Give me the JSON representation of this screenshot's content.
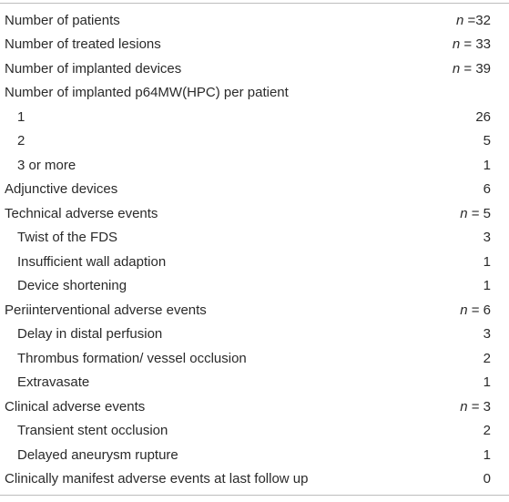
{
  "rows": [
    {
      "label": "Number of patients",
      "n_prefix": "n",
      "value": " =32",
      "indent": false
    },
    {
      "label": "Number of treated lesions",
      "n_prefix": "n",
      "value": " = 33",
      "indent": false
    },
    {
      "label": "Number of implanted devices",
      "n_prefix": "n",
      "value": " = 39",
      "indent": false
    },
    {
      "label": "Number of implanted p64MW(HPC) per patient",
      "n_prefix": "",
      "value": "",
      "indent": false
    },
    {
      "label": "1",
      "n_prefix": "",
      "value": "26",
      "indent": true
    },
    {
      "label": "2",
      "n_prefix": "",
      "value": "5",
      "indent": true
    },
    {
      "label": "3 or more",
      "n_prefix": "",
      "value": "1",
      "indent": true
    },
    {
      "label": "Adjunctive devices",
      "n_prefix": "",
      "value": "6",
      "indent": false
    },
    {
      "label": "Technical adverse events",
      "n_prefix": "n",
      "value": " = 5",
      "indent": false
    },
    {
      "label": "Twist of the FDS",
      "n_prefix": "",
      "value": "3",
      "indent": true
    },
    {
      "label": "Insufficient wall adaption",
      "n_prefix": "",
      "value": "1",
      "indent": true
    },
    {
      "label": "Device shortening",
      "n_prefix": "",
      "value": "1",
      "indent": true
    },
    {
      "label": "Periinterventional adverse events",
      "n_prefix": "n",
      "value": " = 6",
      "indent": false
    },
    {
      "label": "Delay in distal perfusion",
      "n_prefix": "",
      "value": "3",
      "indent": true
    },
    {
      "label": "Thrombus formation/ vessel occlusion",
      "n_prefix": "",
      "value": "2",
      "indent": true
    },
    {
      "label": "Extravasate",
      "n_prefix": "",
      "value": "1",
      "indent": true
    },
    {
      "label": "Clinical adverse events",
      "n_prefix": "n",
      "value": " = 3",
      "indent": false
    },
    {
      "label": "Transient stent occlusion",
      "n_prefix": "",
      "value": "2",
      "indent": true
    },
    {
      "label": "Delayed aneurysm rupture",
      "n_prefix": "",
      "value": "1",
      "indent": true
    },
    {
      "label": "Clinically manifest adverse events at last follow up",
      "n_prefix": "",
      "value": "0",
      "indent": false
    }
  ]
}
